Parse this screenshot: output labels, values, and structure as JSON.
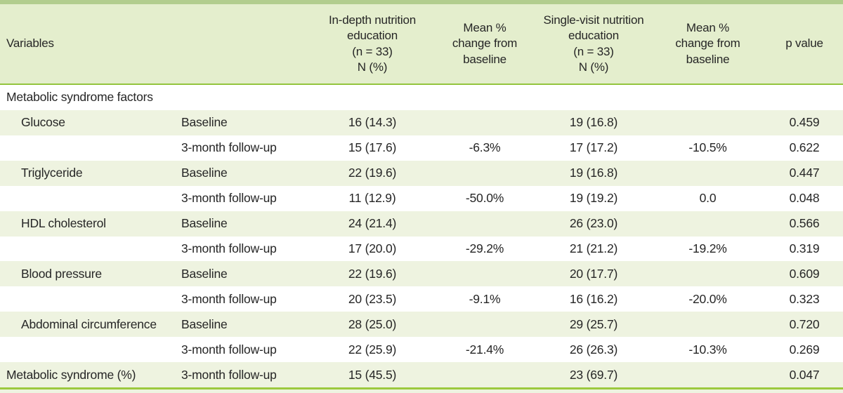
{
  "table": {
    "headers": {
      "variables": "Variables",
      "visit": "",
      "indepth": "In-depth nutrition\neducation\n(n = 33)\nN (%)",
      "indepth_change": "Mean %\nchange from\nbaseline",
      "single_visit": "Single-visit nutrition\neducation\n(n = 33)\nN (%)",
      "single_change": "Mean %\nchange from\nbaseline",
      "p_value": "p value"
    },
    "section": "Metabolic syndrome factors",
    "rows": [
      {
        "variable": "Glucose",
        "visit": "Baseline",
        "g1_n": "16 (14.3)",
        "g1_change": "",
        "g2_n": "19 (16.8)",
        "g2_change": "",
        "p": "0.459"
      },
      {
        "variable": "",
        "visit": "3-month follow-up",
        "g1_n": "15 (17.6)",
        "g1_change": "-6.3%",
        "g2_n": "17 (17.2)",
        "g2_change": "-10.5%",
        "p": "0.622"
      },
      {
        "variable": "Triglyceride",
        "visit": "Baseline",
        "g1_n": "22 (19.6)",
        "g1_change": "",
        "g2_n": "19 (16.8)",
        "g2_change": "",
        "p": "0.447"
      },
      {
        "variable": "",
        "visit": "3-month follow-up",
        "g1_n": "11 (12.9)",
        "g1_change": "-50.0%",
        "g2_n": "19 (19.2)",
        "g2_change": "0.0",
        "p": "0.048"
      },
      {
        "variable": "HDL cholesterol",
        "visit": "Baseline",
        "g1_n": "24 (21.4)",
        "g1_change": "",
        "g2_n": "26 (23.0)",
        "g2_change": "",
        "p": "0.566"
      },
      {
        "variable": "",
        "visit": "3-month follow-up",
        "g1_n": "17 (20.0)",
        "g1_change": "-29.2%",
        "g2_n": "21 (21.2)",
        "g2_change": "-19.2%",
        "p": "0.319"
      },
      {
        "variable": "Blood pressure",
        "visit": "Baseline",
        "g1_n": "22 (19.6)",
        "g1_change": "",
        "g2_n": "20 (17.7)",
        "g2_change": "",
        "p": "0.609"
      },
      {
        "variable": "",
        "visit": "3-month follow-up",
        "g1_n": "20 (23.5)",
        "g1_change": "-9.1%",
        "g2_n": "16 (16.2)",
        "g2_change": "-20.0%",
        "p": "0.323"
      },
      {
        "variable": "Abdominal circumference",
        "visit": "Baseline",
        "g1_n": "28 (25.0)",
        "g1_change": "",
        "g2_n": "29 (25.7)",
        "g2_change": "",
        "p": "0.720"
      },
      {
        "variable": "",
        "visit": "3-month follow-up",
        "g1_n": "22 (25.9)",
        "g1_change": "-21.4%",
        "g2_n": "26 (26.3)",
        "g2_change": "-10.3%",
        "p": "0.269"
      },
      {
        "variable": "Metabolic syndrome (%)",
        "visit": "3-month follow-up",
        "g1_n": "15 (45.5)",
        "g1_change": "",
        "g2_n": "23 (69.7)",
        "g2_change": "",
        "p": "0.047"
      }
    ],
    "colors": {
      "top_border": "#b2cd8e",
      "header_bg": "#e4eecd",
      "header_rule": "#94c43d",
      "shaded_row_bg": "#eef3e0",
      "bottom_rule": "#9cc93e",
      "text": "#262626"
    }
  }
}
